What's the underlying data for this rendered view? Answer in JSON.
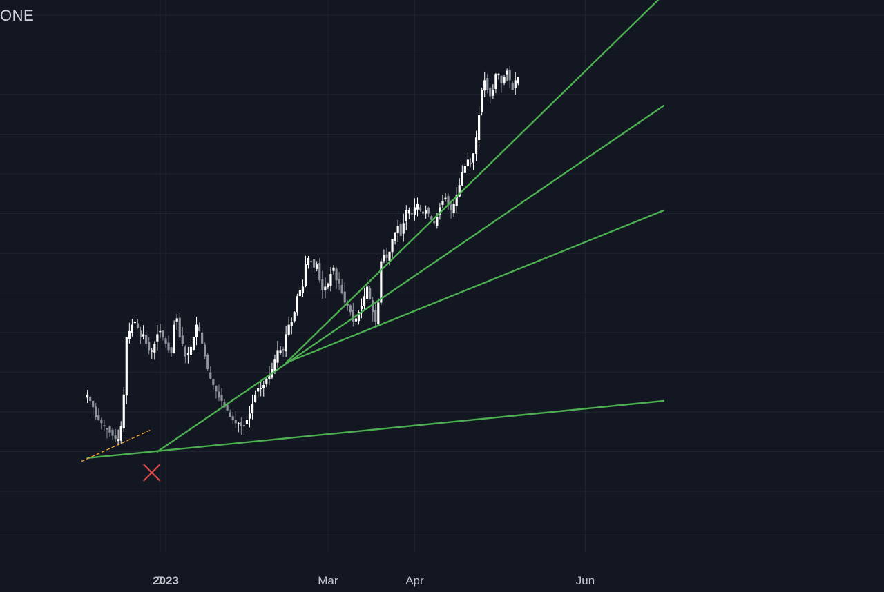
{
  "symbol": "ONE",
  "colors": {
    "background": "#131722",
    "grid": "#1f2430",
    "candle_up": "#ffffff",
    "candle_down": "#8f939c",
    "trendline": "#4caf50",
    "dashed_line": "#f0a030",
    "x_marker": "#e0484a",
    "axis_text": "#c4c7d0"
  },
  "chart_data": {
    "type": "candlestick",
    "title": "ONE",
    "x_ticks": [
      {
        "label": "7",
        "x_day": -2,
        "bold": false
      },
      {
        "label": "2023",
        "x_day": 0,
        "bold": true
      },
      {
        "label": "Mar",
        "x_day": 58,
        "bold": false
      },
      {
        "label": "Apr",
        "x_day": 89,
        "bold": false
      },
      {
        "label": "Jun",
        "x_day": 150,
        "bold": false
      }
    ],
    "y_axis": {
      "range": [
        -10,
        100
      ],
      "ticks_shown": false
    },
    "candles_close": [
      22,
      20,
      18,
      15,
      14,
      13,
      12,
      11,
      10,
      9,
      8,
      8,
      12,
      22,
      40,
      42,
      44,
      45,
      43,
      40,
      41,
      38,
      36,
      36,
      38,
      41,
      42,
      40,
      38,
      36,
      35,
      44,
      46,
      40,
      38,
      34,
      35,
      37,
      40,
      44,
      42,
      38,
      34,
      30,
      27,
      25,
      23,
      21,
      20,
      18,
      17,
      15,
      14,
      13,
      13,
      12,
      12,
      14,
      16,
      19,
      22,
      24,
      24,
      25,
      27,
      28,
      30,
      33,
      36,
      36,
      36,
      41,
      44,
      45,
      48,
      53,
      55,
      56,
      63,
      65,
      64,
      62,
      63,
      58,
      55,
      56,
      57,
      60,
      62,
      58,
      57,
      54,
      51,
      50,
      48,
      45,
      46,
      48,
      50,
      53,
      56,
      52,
      48,
      45,
      51,
      64,
      66,
      65,
      67,
      71,
      73,
      75,
      72,
      76,
      80,
      80,
      79,
      81,
      82,
      80,
      79,
      80,
      79,
      77,
      76,
      78,
      81,
      83,
      84,
      82,
      80,
      82,
      85,
      88,
      92,
      94,
      96,
      95,
      98,
      103,
      110,
      118,
      121,
      118,
      116,
      118,
      123,
      123,
      120,
      122,
      124,
      121,
      118,
      121,
      122
    ],
    "candle_start_day": -28,
    "trendlines": [
      {
        "from": [
          -28,
          2
        ],
        "to": [
          178,
          20
        ],
        "style": "solid"
      },
      {
        "from": [
          -3,
          4
        ],
        "to": [
          178,
          113
        ],
        "style": "solid"
      },
      {
        "from": [
          43,
          32
        ],
        "to": [
          178,
          148
        ],
        "style": "solid"
      },
      {
        "from": [
          43,
          32
        ],
        "to": [
          178,
          80
        ],
        "style": "solid"
      },
      {
        "from": [
          -30,
          1
        ],
        "to": [
          -5,
          11
        ],
        "style": "dashed"
      }
    ],
    "markers": [
      {
        "shape": "x",
        "day": -5,
        "value": 0
      }
    ]
  }
}
